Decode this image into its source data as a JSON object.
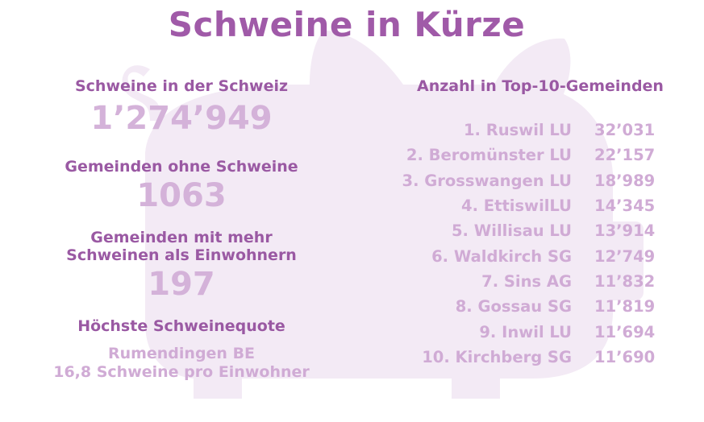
{
  "title": "Schweine in Kürze",
  "colors": {
    "accent": "#a05aa8",
    "label": "#9a59a3",
    "light": "#d4b2d9",
    "pig": "#f3eaf5"
  },
  "stats": {
    "total_label": "Schweine in der Schweiz",
    "total_value": "1’274’949",
    "without_label": "Gemeinden ohne Schweine",
    "without_value": "1063",
    "more_label_line1": "Gemeinden mit mehr",
    "more_label_line2": "Schweinen als Einwohnern",
    "more_value": "197",
    "quota_label": "Höchste Schweinequote",
    "quota_place": "Rumendingen BE",
    "quota_value": "16,8 Schweine pro Einwohner"
  },
  "top10": {
    "heading": "Anzahl in Top-10-Gemeinden",
    "items": [
      {
        "name": "1. Ruswil LU",
        "count": "32’031"
      },
      {
        "name": "2. Beromünster LU",
        "count": "22’157"
      },
      {
        "name": "3. Grosswangen LU",
        "count": "18’989"
      },
      {
        "name": "4. EttiswilLU",
        "count": "14’345"
      },
      {
        "name": "5. Willisau LU",
        "count": "13’914"
      },
      {
        "name": "6. Waldkirch SG",
        "count": "12’749"
      },
      {
        "name": "7. Sins AG",
        "count": "11’832"
      },
      {
        "name": "8. Gossau SG",
        "count": "11’819"
      },
      {
        "name": "9. Inwil LU",
        "count": "11’694"
      },
      {
        "name": "10. Kirchberg SG",
        "count": "11’690"
      }
    ]
  }
}
